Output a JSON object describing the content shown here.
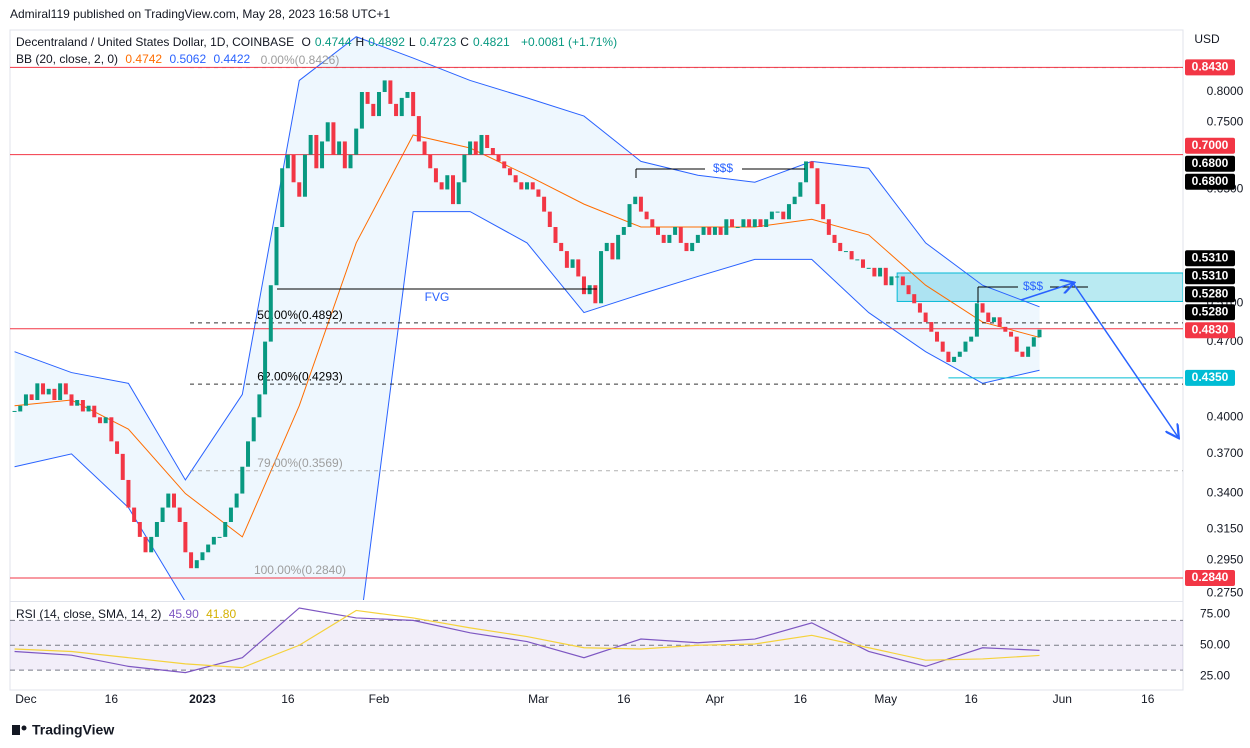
{
  "header": {
    "publisher": "Admiral119 published on TradingView.com, May 28, 2023 16:58 UTC+1",
    "currency": "USD",
    "brand": "TradingView"
  },
  "annotations": {
    "liquidity_1": "$$$",
    "liquidity_2": "$$$",
    "gap": "FVG"
  },
  "chart_data": [
    {
      "type": "candlestick",
      "title": "Decentraland / United States Dollar, 1D, COINBASE",
      "ohlc": {
        "labels": [
          "O",
          "H",
          "L",
          "C"
        ],
        "values": [
          0.4744,
          0.4892,
          0.4723,
          0.4821
        ],
        "change": "+0.0081 (+1.71%)"
      },
      "close": [
        0.405,
        0.41,
        0.42,
        0.415,
        0.43,
        0.42,
        0.425,
        0.415,
        0.43,
        0.42,
        0.41,
        0.415,
        0.405,
        0.41,
        0.4,
        0.395,
        0.4,
        0.38,
        0.37,
        0.35,
        0.33,
        0.32,
        0.31,
        0.3,
        0.31,
        0.32,
        0.33,
        0.34,
        0.33,
        0.32,
        0.3,
        0.29,
        0.295,
        0.3,
        0.305,
        0.31,
        0.31,
        0.32,
        0.33,
        0.34,
        0.36,
        0.38,
        0.4,
        0.42,
        0.47,
        0.53,
        0.6,
        0.68,
        0.7,
        0.66,
        0.64,
        0.7,
        0.73,
        0.68,
        0.72,
        0.75,
        0.7,
        0.72,
        0.68,
        0.7,
        0.74,
        0.8,
        0.78,
        0.76,
        0.8,
        0.82,
        0.78,
        0.76,
        0.79,
        0.8,
        0.76,
        0.72,
        0.7,
        0.68,
        0.66,
        0.65,
        0.67,
        0.63,
        0.66,
        0.7,
        0.72,
        0.7,
        0.73,
        0.71,
        0.7,
        0.69,
        0.68,
        0.67,
        0.66,
        0.65,
        0.66,
        0.65,
        0.64,
        0.62,
        0.6,
        0.58,
        0.57,
        0.55,
        0.56,
        0.54,
        0.52,
        0.53,
        0.51,
        0.57,
        0.58,
        0.56,
        0.59,
        0.6,
        0.63,
        0.64,
        0.62,
        0.61,
        0.6,
        0.59,
        0.58,
        0.59,
        0.6,
        0.58,
        0.57,
        0.58,
        0.59,
        0.6,
        0.59,
        0.6,
        0.59,
        0.61,
        0.6,
        0.6,
        0.61,
        0.6,
        0.61,
        0.6,
        0.61,
        0.62,
        0.62,
        0.61,
        0.63,
        0.64,
        0.66,
        0.69,
        0.68,
        0.63,
        0.61,
        0.59,
        0.58,
        0.57,
        0.57,
        0.56,
        0.56,
        0.55,
        0.55,
        0.54,
        0.55,
        0.53,
        0.54,
        0.54,
        0.53,
        0.52,
        0.51,
        0.5,
        0.49,
        0.48,
        0.47,
        0.46,
        0.45,
        0.455,
        0.46,
        0.47,
        0.475,
        0.51,
        0.5,
        0.49,
        0.495,
        0.485,
        0.48,
        0.475,
        0.46,
        0.455,
        0.465,
        0.4744,
        0.4821
      ],
      "up_color": "#089981",
      "down_color": "#f23645",
      "log_scale": true,
      "xlim": [
        -0.8,
        205.2
      ],
      "xticks": [
        {
          "value": 2,
          "label": "Dec"
        },
        {
          "value": 17,
          "label": "16"
        },
        {
          "value": 33,
          "label": "2023"
        },
        {
          "value": 48,
          "label": "16"
        },
        {
          "value": 64,
          "label": "Feb"
        },
        {
          "value": 92,
          "label": "Mar"
        },
        {
          "value": 107,
          "label": "16"
        },
        {
          "value": 123,
          "label": "Apr"
        },
        {
          "value": 138,
          "label": "16"
        },
        {
          "value": 153,
          "label": "May"
        },
        {
          "value": 168,
          "label": "16"
        },
        {
          "value": 184,
          "label": "Jun"
        },
        {
          "value": 199,
          "label": "16"
        }
      ],
      "ylim": [
        0.271,
        0.913
      ],
      "yticks": [
        {
          "value": 0.8,
          "label": "0.8000"
        },
        {
          "value": 0.75,
          "label": "0.7500"
        },
        {
          "value": 0.65,
          "label": "0.6500"
        },
        {
          "value": 0.51,
          "label": "0.5100"
        },
        {
          "value": 0.47,
          "label": "0.4700"
        },
        {
          "value": 0.4,
          "label": "0.4000"
        },
        {
          "value": 0.37,
          "label": "0.3700"
        },
        {
          "value": 0.34,
          "label": "0.3400"
        },
        {
          "value": 0.315,
          "label": "0.3150"
        },
        {
          "value": 0.295,
          "label": "0.2950"
        },
        {
          "value": 0.275,
          "label": "0.2750"
        }
      ],
      "indicator": {
        "title": "BB (20, close, 2, 0)",
        "fill": "#2196f3",
        "x": [
          0,
          10,
          20,
          30,
          40,
          50,
          60,
          70,
          80,
          90,
          100,
          110,
          120,
          130,
          140,
          150,
          160,
          170,
          180
        ],
        "series": [
          {
            "color": "#ff6d00",
            "values": [
              0.41,
              0.415,
              0.39,
              0.34,
              0.31,
              0.41,
              0.58,
              0.73,
              0.71,
              0.67,
              0.63,
              0.6,
              0.6,
              0.6,
              0.61,
              0.59,
              0.53,
              0.49,
              0.4742
            ]
          },
          {
            "color": "#2962ff",
            "values": [
              0.46,
              0.44,
              0.43,
              0.35,
              0.42,
              0.82,
              0.9,
              0.86,
              0.82,
              0.79,
              0.76,
              0.69,
              0.67,
              0.66,
              0.69,
              0.68,
              0.58,
              0.53,
              0.5062
            ]
          },
          {
            "color": "#2962ff",
            "values": [
              0.36,
              0.37,
              0.33,
              0.27,
              0.22,
              0.2,
              0.24,
              0.62,
              0.62,
              0.58,
              0.5,
              0.52,
              0.54,
              0.56,
              0.56,
              0.5,
              0.46,
              0.43,
              0.4422
            ]
          }
        ]
      },
      "price_tags": [
        {
          "value": 0.843,
          "label": "0.8430",
          "color": "#f23645",
          "line": true
        },
        {
          "value": 0.7,
          "label": "0.7000",
          "color": "#f23645",
          "line": true
        },
        {
          "value": 0.68,
          "label": "0.6800",
          "color": "#000000"
        },
        {
          "value": 0.68,
          "label": "0.6800",
          "color": "#000000"
        },
        {
          "value": 0.531,
          "label": "0.5310",
          "color": "#000000"
        },
        {
          "value": 0.531,
          "label": "0.5310",
          "color": "#000000"
        },
        {
          "value": 0.528,
          "label": "0.5280",
          "color": "#000000"
        },
        {
          "value": 0.528,
          "label": "0.5280",
          "color": "#000000"
        },
        {
          "value": 0.483,
          "label": "0.4830",
          "color": "#f23645",
          "line": true
        },
        {
          "value": 0.435,
          "label": "0.4350",
          "color": "#00bcd4",
          "line": true,
          "start": 164
        },
        {
          "value": 0.284,
          "label": "0.2840",
          "color": "#f23645",
          "line": true
        }
      ],
      "fib_levels": [
        {
          "value": 0.8426,
          "label": "0.00%(0.8426)",
          "color": "#9e9e9e"
        },
        {
          "value": 0.4892,
          "label": "50.00%(0.4892)",
          "color": "#000000"
        },
        {
          "value": 0.4293,
          "label": "62.00%(0.4293)",
          "color": "#000000"
        },
        {
          "value": 0.3569,
          "label": "79.00%(0.3569)",
          "color": "#9e9e9e"
        },
        {
          "value": 0.284,
          "label": "100.00%(0.2840)",
          "color": "#9e9e9e"
        }
      ],
      "zone": {
        "top": 0.544,
        "bottom": 0.512,
        "start": 155,
        "color": "#7fd8e8"
      }
    },
    {
      "type": "line",
      "title": "RSI (14, close, SMA, 14, 2)",
      "x": [
        0,
        10,
        20,
        30,
        40,
        50,
        60,
        70,
        80,
        90,
        100,
        110,
        120,
        130,
        140,
        150,
        160,
        170,
        180
      ],
      "series": [
        {
          "color": "#7e57c2",
          "values": [
            45,
            42,
            33,
            28,
            40,
            80,
            72,
            70,
            60,
            53,
            40,
            55,
            52,
            55,
            68,
            45,
            33,
            48,
            45.9
          ],
          "legend": {
            "value": 45.9,
            "label": "45.90"
          }
        },
        {
          "color": "#f5d23c",
          "values": [
            47,
            45,
            40,
            35,
            32,
            50,
            78,
            72,
            64,
            57,
            48,
            47,
            50,
            51,
            58,
            48,
            38,
            39,
            41.8
          ],
          "legend": {
            "value": 41.8,
            "label": "41.80"
          }
        }
      ],
      "ylim": [
        14,
        84
      ],
      "yticks": [
        {
          "value": 75,
          "label": "75.00"
        },
        {
          "value": 50,
          "label": "50.00"
        },
        {
          "value": 25,
          "label": "25.00"
        }
      ],
      "band": [
        30,
        70
      ]
    }
  ]
}
